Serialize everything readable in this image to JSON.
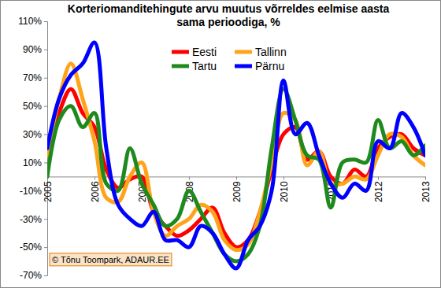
{
  "chart_data": {
    "type": "line",
    "title": "Korteriomanditehingute arvu muutus võrreldes eelmise aasta sama perioodiga, %",
    "annotation": "© Tõnu Toompark, ADAUR.EE",
    "categories": [
      "2005",
      null,
      null,
      null,
      "2006",
      null,
      null,
      null,
      "2007",
      null,
      null,
      null,
      "2008",
      null,
      null,
      null,
      "2009",
      null,
      null,
      null,
      "2010",
      null,
      null,
      null,
      "2011",
      null,
      null,
      null,
      "2012",
      null,
      null,
      null,
      "2013"
    ],
    "series": [
      {
        "name": "Eesti",
        "color": "#ff0000",
        "values": [
          15,
          45,
          62,
          45,
          35,
          5,
          -8,
          -2,
          0,
          -25,
          -35,
          -42,
          -38,
          -30,
          -22,
          -40,
          -50,
          -45,
          -25,
          5,
          30,
          35,
          12,
          18,
          0,
          -5,
          5,
          0,
          20,
          28,
          30,
          20,
          15
        ]
      },
      {
        "name": "Tallinn",
        "color": "#ffa31a",
        "values": [
          15,
          55,
          80,
          55,
          25,
          -15,
          -18,
          0,
          10,
          -25,
          -42,
          -35,
          -30,
          -20,
          -25,
          -45,
          -52,
          -48,
          -25,
          10,
          45,
          40,
          8,
          18,
          -5,
          -5,
          0,
          -2,
          15,
          30,
          28,
          15,
          8
        ]
      },
      {
        "name": "Tartu",
        "color": "#1e8a1e",
        "values": [
          0,
          40,
          50,
          35,
          45,
          -5,
          -10,
          20,
          -5,
          -20,
          -35,
          -30,
          -10,
          -25,
          -40,
          -55,
          -60,
          -55,
          -35,
          20,
          62,
          40,
          15,
          12,
          -22,
          10,
          12,
          10,
          40,
          20,
          25,
          15,
          22
        ]
      },
      {
        "name": "Pärnu",
        "color": "#0000ff",
        "values": [
          20,
          55,
          72,
          80,
          95,
          20,
          -20,
          -30,
          -35,
          -25,
          -45,
          -45,
          -50,
          -35,
          -40,
          -55,
          -65,
          -45,
          -35,
          -10,
          68,
          30,
          38,
          15,
          -5,
          -15,
          -5,
          -10,
          25,
          20,
          45,
          35,
          15
        ]
      }
    ],
    "ylim": [
      -70,
      110
    ],
    "yticks": [
      {
        "value": -70,
        "label": "-70%"
      },
      {
        "value": -50,
        "label": "-50%"
      },
      {
        "value": -30,
        "label": "-30%"
      },
      {
        "value": -10,
        "label": "-10%"
      },
      {
        "value": 10,
        "label": "10%"
      },
      {
        "value": 30,
        "label": "30%"
      },
      {
        "value": 50,
        "label": "50%"
      },
      {
        "value": 70,
        "label": "70%"
      },
      {
        "value": 90,
        "label": "90%"
      },
      {
        "value": 110,
        "label": "110%"
      }
    ],
    "grid": false,
    "legend": "top"
  }
}
